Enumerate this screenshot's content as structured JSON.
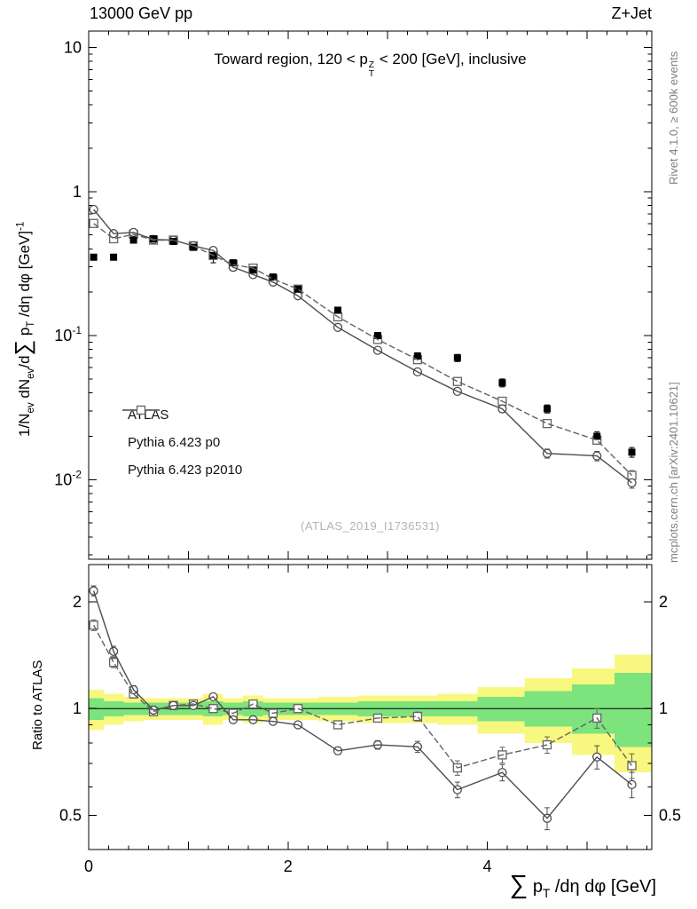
{
  "header": {
    "left": "13000 GeV pp",
    "right": "Z+Jet"
  },
  "side_notes": {
    "rivet": "Rivet 4.1.0, ≥ 600k events",
    "mcplots": "mcplots.cern.ch [arXiv:2401.10621]"
  },
  "watermark": "(ATLAS_2019_I1736531)",
  "labels": {
    "title": [
      {
        "t": "Toward region, 120 < p"
      },
      {
        "s": "stack",
        "top": "Z",
        "bot": "T"
      },
      {
        "t": " < 200 [GeV], inclusive"
      }
    ],
    "y_main": [
      {
        "t": "1/N"
      },
      {
        "t": "ev",
        "s": "sub"
      },
      {
        "t": " dN"
      },
      {
        "t": "ev",
        "s": "sub"
      },
      {
        "t": "/d"
      },
      {
        "t": "∑",
        "s": "big"
      },
      {
        "t": " p"
      },
      {
        "t": "T",
        "s": "sub"
      },
      {
        "t": " /dη dφ  [GeV]"
      },
      {
        "t": "-1",
        "s": "sup"
      }
    ],
    "y_ratio": [
      {
        "t": "Ratio to ATLAS"
      }
    ],
    "x": [
      {
        "t": "∑",
        "s": "big"
      },
      {
        "t": " p"
      },
      {
        "t": "T",
        "s": "sub"
      },
      {
        "t": " /dη dφ [GeV]"
      }
    ]
  },
  "legend": [
    {
      "label": "ATLAS",
      "marker": "filled-square"
    },
    {
      "label": "Pythia 6.423 p0",
      "marker": "line-circle"
    },
    {
      "label": "Pythia 6.423 p2010",
      "marker": "dashed-square"
    }
  ],
  "colors": {
    "atlas": "#000000",
    "p0": "#4d4d4d",
    "p2010": "#636363",
    "band_yellow": "#f8f880",
    "band_green": "#7de37d"
  },
  "chart_data": {
    "type": "line",
    "title": "Toward region, 120 < pT^Z < 200 [GeV], inclusive",
    "xlabel": "Sum pT /deta dphi [GeV]",
    "ylabel": "1/N_ev dN_ev/dSum pT /deta dphi [GeV]^-1",
    "ylabel_ratio": "Ratio to ATLAS",
    "x_axis": {
      "min": 0,
      "max": 5.65,
      "minor_step": 0.2,
      "labeled": [
        {
          "v": 0,
          "t": "0"
        },
        {
          "v": 2,
          "t": "2"
        },
        {
          "v": 4,
          "t": "4"
        }
      ]
    },
    "y_main_axis": {
      "scale": "log",
      "min": 0.0028,
      "max": 13,
      "ticks": [
        {
          "v": 10,
          "t": "10"
        },
        {
          "v": 1,
          "t": "1"
        },
        {
          "v": 0.1,
          "t": "10",
          "e": "-1"
        },
        {
          "v": 0.01,
          "t": "10",
          "e": "-2"
        }
      ]
    },
    "y_ratio_axis": {
      "scale": "log",
      "min": 0.4,
      "max": 2.55,
      "ticks": [
        {
          "v": 2,
          "t": "2"
        },
        {
          "v": 1,
          "t": "1"
        },
        {
          "v": 0.5,
          "t": "0.5"
        }
      ]
    },
    "x": [
      0.05,
      0.25,
      0.45,
      0.65,
      0.85,
      1.05,
      1.25,
      1.45,
      1.65,
      1.85,
      2.1,
      2.5,
      2.9,
      3.3,
      3.7,
      4.15,
      4.6,
      5.1,
      5.45
    ],
    "atlas": {
      "name": "ATLAS",
      "values": [
        0.35,
        0.35,
        0.46,
        0.47,
        0.45,
        0.41,
        0.36,
        0.32,
        0.285,
        0.255,
        0.21,
        0.15,
        0.1,
        0.072,
        0.07,
        0.047,
        0.031,
        0.02,
        0.0155
      ],
      "errors": [
        0.012,
        0.012,
        0.015,
        0.015,
        0.015,
        0.013,
        0.04,
        0.012,
        0.02,
        0.012,
        0.008,
        0.006,
        0.005,
        0.004,
        0.004,
        0.003,
        0.002,
        0.0015,
        0.0012
      ]
    },
    "series": [
      {
        "name": "Pythia 6.423 p0",
        "style": "solid",
        "marker": "circle",
        "values": [
          0.75,
          0.51,
          0.52,
          0.465,
          0.46,
          0.42,
          0.39,
          0.298,
          0.265,
          0.235,
          0.189,
          0.114,
          0.079,
          0.056,
          0.041,
          0.031,
          0.0152,
          0.0146,
          0.0095
        ],
        "ratio": [
          2.15,
          1.45,
          1.13,
          0.99,
          1.02,
          1.02,
          1.08,
          0.93,
          0.93,
          0.92,
          0.9,
          0.76,
          0.79,
          0.78,
          0.59,
          0.66,
          0.49,
          0.73,
          0.61
        ],
        "ratio_err": [
          0.07,
          0.05,
          0.03,
          0.025,
          0.02,
          0.02,
          0.02,
          0.02,
          0.02,
          0.02,
          0.015,
          0.018,
          0.022,
          0.028,
          0.03,
          0.035,
          0.035,
          0.055,
          0.05
        ]
      },
      {
        "name": "Pythia 6.423 p2010",
        "style": "dashed",
        "marker": "square",
        "values": [
          0.6,
          0.47,
          0.505,
          0.46,
          0.46,
          0.42,
          0.36,
          0.31,
          0.294,
          0.247,
          0.21,
          0.135,
          0.094,
          0.068,
          0.048,
          0.035,
          0.0245,
          0.0188,
          0.0107
        ],
        "ratio": [
          1.72,
          1.35,
          1.1,
          0.98,
          1.02,
          1.03,
          1.0,
          0.97,
          1.03,
          0.97,
          1.0,
          0.9,
          0.94,
          0.95,
          0.68,
          0.74,
          0.79,
          0.94,
          0.69
        ],
        "ratio_err": [
          0.06,
          0.045,
          0.03,
          0.025,
          0.02,
          0.02,
          0.02,
          0.02,
          0.02,
          0.02,
          0.015,
          0.018,
          0.022,
          0.028,
          0.032,
          0.038,
          0.042,
          0.06,
          0.055
        ]
      }
    ],
    "bands": {
      "edges": [
        0,
        0.15,
        0.35,
        0.55,
        0.75,
        0.95,
        1.15,
        1.35,
        1.55,
        1.75,
        1.95,
        2.3,
        2.7,
        3.1,
        3.5,
        3.9,
        4.375,
        4.85,
        5.275,
        5.65
      ],
      "yellow_hi": [
        1.13,
        1.1,
        1.08,
        1.07,
        1.07,
        1.07,
        1.1,
        1.07,
        1.09,
        1.07,
        1.07,
        1.08,
        1.09,
        1.09,
        1.1,
        1.15,
        1.22,
        1.3,
        1.42
      ],
      "yellow_lo": [
        0.87,
        0.9,
        0.92,
        0.93,
        0.93,
        0.93,
        0.9,
        0.93,
        0.91,
        0.93,
        0.93,
        0.92,
        0.91,
        0.91,
        0.9,
        0.85,
        0.8,
        0.74,
        0.66
      ],
      "green_hi": [
        1.07,
        1.05,
        1.04,
        1.04,
        1.04,
        1.04,
        1.05,
        1.04,
        1.05,
        1.04,
        1.04,
        1.04,
        1.05,
        1.05,
        1.05,
        1.08,
        1.12,
        1.17,
        1.26
      ],
      "green_lo": [
        0.93,
        0.95,
        0.96,
        0.96,
        0.96,
        0.96,
        0.95,
        0.96,
        0.95,
        0.96,
        0.96,
        0.96,
        0.95,
        0.95,
        0.95,
        0.92,
        0.89,
        0.85,
        0.78
      ]
    }
  }
}
